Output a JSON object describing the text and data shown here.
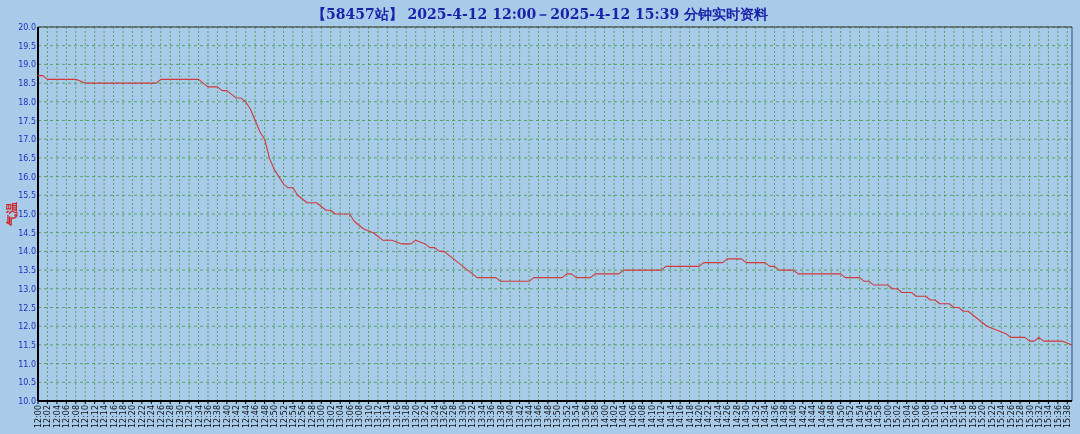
{
  "chart_data": {
    "type": "line",
    "title": "【58457站】 2025-4-12 12:00－2025-4-12 15:39 分钟实时资料",
    "ylabel": "气温",
    "x": [
      12.0,
      12.0167,
      12.0333,
      12.1333,
      12.1667,
      12.4167,
      12.4333,
      12.5667,
      12.5833,
      12.6,
      12.6333,
      12.65,
      12.6667,
      12.7,
      12.7167,
      12.7333,
      12.75,
      12.7667,
      12.7833,
      12.8,
      12.8167,
      12.8333,
      12.85,
      12.8667,
      12.8833,
      12.9,
      12.9167,
      12.9333,
      12.95,
      12.9833,
      13.0,
      13.0167,
      13.0333,
      13.05,
      13.1,
      13.1167,
      13.15,
      13.1833,
      13.2167,
      13.25,
      13.2833,
      13.3167,
      13.3333,
      13.3667,
      13.3833,
      13.4,
      13.4167,
      13.4333,
      13.4667,
      13.5,
      13.5333,
      13.55,
      13.6167,
      13.6333,
      13.7333,
      13.75,
      13.85,
      13.8667,
      13.8833,
      13.9,
      13.95,
      13.9667,
      14.05,
      14.0667,
      14.2,
      14.2167,
      14.3333,
      14.35,
      14.4167,
      14.4333,
      14.4833,
      14.5,
      14.5667,
      14.5833,
      14.6,
      14.6167,
      14.6667,
      14.6833,
      14.8333,
      14.85,
      14.9,
      14.9167,
      14.9333,
      14.95,
      15.0,
      15.0167,
      15.0333,
      15.05,
      15.0833,
      15.1,
      15.1333,
      15.15,
      15.1667,
      15.1833,
      15.2167,
      15.2333,
      15.25,
      15.2667,
      15.2833,
      15.3,
      15.3167,
      15.3333,
      15.35,
      15.3833,
      15.4167,
      15.4333,
      15.4833,
      15.5,
      15.5167,
      15.5333,
      15.55,
      15.6167,
      15.65
    ],
    "series": [
      {
        "color": "#d03a3a",
        "values": [
          18.7,
          18.7,
          18.6,
          18.6,
          18.5,
          18.5,
          18.6,
          18.6,
          18.5,
          18.4,
          18.4,
          18.3,
          18.3,
          18.1,
          18.1,
          18.0,
          17.8,
          17.5,
          17.2,
          17.0,
          16.5,
          16.2,
          16.0,
          15.8,
          15.7,
          15.7,
          15.5,
          15.4,
          15.3,
          15.3,
          15.2,
          15.1,
          15.1,
          15.0,
          15.0,
          14.8,
          14.6,
          14.5,
          14.3,
          14.3,
          14.2,
          14.2,
          14.3,
          14.2,
          14.1,
          14.1,
          14.0,
          14.0,
          13.8,
          13.6,
          13.4,
          13.3,
          13.3,
          13.2,
          13.2,
          13.3,
          13.3,
          13.4,
          13.4,
          13.3,
          13.3,
          13.4,
          13.4,
          13.5,
          13.5,
          13.6,
          13.6,
          13.7,
          13.7,
          13.8,
          13.8,
          13.7,
          13.7,
          13.6,
          13.6,
          13.5,
          13.5,
          13.4,
          13.4,
          13.3,
          13.3,
          13.2,
          13.2,
          13.1,
          13.1,
          13.0,
          13.0,
          12.9,
          12.9,
          12.8,
          12.8,
          12.7,
          12.7,
          12.6,
          12.6,
          12.5,
          12.5,
          12.4,
          12.4,
          12.3,
          12.2,
          12.1,
          12.0,
          11.9,
          11.8,
          11.7,
          11.7,
          11.6,
          11.6,
          11.7,
          11.6,
          11.6,
          11.5
        ]
      }
    ],
    "xlim": [
      12.0,
      15.65
    ],
    "ylim": [
      10,
      20
    ],
    "yticks": [
      {
        "value": 10,
        "label": "10.0"
      },
      {
        "value": 10.5,
        "label": "10.5"
      },
      {
        "value": 11,
        "label": "11.0"
      },
      {
        "value": 11.5,
        "label": "11.5"
      },
      {
        "value": 12,
        "label": "12.0"
      },
      {
        "value": 12.5,
        "label": "12.5"
      },
      {
        "value": 13,
        "label": "13.0"
      },
      {
        "value": 13.5,
        "label": "13.5"
      },
      {
        "value": 14,
        "label": "14.0"
      },
      {
        "value": 14.5,
        "label": "14.5"
      },
      {
        "value": 15,
        "label": "15.0"
      },
      {
        "value": 15.5,
        "label": "15.5"
      },
      {
        "value": 16,
        "label": "16.0"
      },
      {
        "value": 16.5,
        "label": "16.5"
      },
      {
        "value": 17,
        "label": "17.0"
      },
      {
        "value": 17.5,
        "label": "17.5"
      },
      {
        "value": 18,
        "label": "18.0"
      },
      {
        "value": 18.5,
        "label": "18.5"
      },
      {
        "value": 19,
        "label": "19.0"
      },
      {
        "value": 19.5,
        "label": "19.5"
      },
      {
        "value": 20,
        "label": "20.0"
      }
    ],
    "xticks": [
      {
        "value": 12.0,
        "label": "12:00"
      },
      {
        "value": 12.0333,
        "label": "12:02"
      },
      {
        "value": 12.0667,
        "label": "12:04"
      },
      {
        "value": 12.1,
        "label": "12:06"
      },
      {
        "value": 12.1333,
        "label": "12:08"
      },
      {
        "value": 12.1667,
        "label": "12:10"
      },
      {
        "value": 12.2,
        "label": "12:12"
      },
      {
        "value": 12.2333,
        "label": "12:14"
      },
      {
        "value": 12.2667,
        "label": "12:16"
      },
      {
        "value": 12.3,
        "label": "12:18"
      },
      {
        "value": 12.3333,
        "label": "12:20"
      },
      {
        "value": 12.3667,
        "label": "12:22"
      },
      {
        "value": 12.4,
        "label": "12:24"
      },
      {
        "value": 12.4333,
        "label": "12:26"
      },
      {
        "value": 12.4667,
        "label": "12:28"
      },
      {
        "value": 12.5,
        "label": "12:30"
      },
      {
        "value": 12.5333,
        "label": "12:32"
      },
      {
        "value": 12.5667,
        "label": "12:34"
      },
      {
        "value": 12.6,
        "label": "12:36"
      },
      {
        "value": 12.6333,
        "label": "12:38"
      },
      {
        "value": 12.6667,
        "label": "12:40"
      },
      {
        "value": 12.7,
        "label": "12:42"
      },
      {
        "value": 12.7333,
        "label": "12:44"
      },
      {
        "value": 12.7667,
        "label": "12:46"
      },
      {
        "value": 12.8,
        "label": "12:48"
      },
      {
        "value": 12.8333,
        "label": "12:50"
      },
      {
        "value": 12.8667,
        "label": "12:52"
      },
      {
        "value": 12.9,
        "label": "12:54"
      },
      {
        "value": 12.9333,
        "label": "12:56"
      },
      {
        "value": 12.9667,
        "label": "12:58"
      },
      {
        "value": 13.0,
        "label": "13:00"
      },
      {
        "value": 13.0333,
        "label": "13:02"
      },
      {
        "value": 13.0667,
        "label": "13:04"
      },
      {
        "value": 13.1,
        "label": "13:06"
      },
      {
        "value": 13.1333,
        "label": "13:08"
      },
      {
        "value": 13.1667,
        "label": "13:10"
      },
      {
        "value": 13.2,
        "label": "13:12"
      },
      {
        "value": 13.2333,
        "label": "13:14"
      },
      {
        "value": 13.2667,
        "label": "13:16"
      },
      {
        "value": 13.3,
        "label": "13:18"
      },
      {
        "value": 13.3333,
        "label": "13:20"
      },
      {
        "value": 13.3667,
        "label": "13:22"
      },
      {
        "value": 13.4,
        "label": "13:24"
      },
      {
        "value": 13.4333,
        "label": "13:26"
      },
      {
        "value": 13.4667,
        "label": "13:28"
      },
      {
        "value": 13.5,
        "label": "13:30"
      },
      {
        "value": 13.5333,
        "label": "13:32"
      },
      {
        "value": 13.5667,
        "label": "13:34"
      },
      {
        "value": 13.6,
        "label": "13:36"
      },
      {
        "value": 13.6333,
        "label": "13:38"
      },
      {
        "value": 13.6667,
        "label": "13:40"
      },
      {
        "value": 13.7,
        "label": "13:42"
      },
      {
        "value": 13.7333,
        "label": "13:44"
      },
      {
        "value": 13.7667,
        "label": "13:46"
      },
      {
        "value": 13.8,
        "label": "13:48"
      },
      {
        "value": 13.8333,
        "label": "13:50"
      },
      {
        "value": 13.8667,
        "label": "13:52"
      },
      {
        "value": 13.9,
        "label": "13:54"
      },
      {
        "value": 13.9333,
        "label": "13:56"
      },
      {
        "value": 13.9667,
        "label": "13:58"
      },
      {
        "value": 14.0,
        "label": "14:00"
      },
      {
        "value": 14.0333,
        "label": "14:02"
      },
      {
        "value": 14.0667,
        "label": "14:04"
      },
      {
        "value": 14.1,
        "label": "14:06"
      },
      {
        "value": 14.1333,
        "label": "14:08"
      },
      {
        "value": 14.1667,
        "label": "14:10"
      },
      {
        "value": 14.2,
        "label": "14:12"
      },
      {
        "value": 14.2333,
        "label": "14:14"
      },
      {
        "value": 14.2667,
        "label": "14:16"
      },
      {
        "value": 14.3,
        "label": "14:18"
      },
      {
        "value": 14.3333,
        "label": "14:20"
      },
      {
        "value": 14.3667,
        "label": "14:22"
      },
      {
        "value": 14.4,
        "label": "14:24"
      },
      {
        "value": 14.4333,
        "label": "14:26"
      },
      {
        "value": 14.4667,
        "label": "14:28"
      },
      {
        "value": 14.5,
        "label": "14:30"
      },
      {
        "value": 14.5333,
        "label": "14:32"
      },
      {
        "value": 14.5667,
        "label": "14:34"
      },
      {
        "value": 14.6,
        "label": "14:36"
      },
      {
        "value": 14.6333,
        "label": "14:38"
      },
      {
        "value": 14.6667,
        "label": "14:40"
      },
      {
        "value": 14.7,
        "label": "14:42"
      },
      {
        "value": 14.7333,
        "label": "14:44"
      },
      {
        "value": 14.7667,
        "label": "14:46"
      },
      {
        "value": 14.8,
        "label": "14:48"
      },
      {
        "value": 14.8333,
        "label": "14:50"
      },
      {
        "value": 14.8667,
        "label": "14:52"
      },
      {
        "value": 14.9,
        "label": "14:54"
      },
      {
        "value": 14.9333,
        "label": "14:56"
      },
      {
        "value": 14.9667,
        "label": "14:58"
      },
      {
        "value": 15.0,
        "label": "15:00"
      },
      {
        "value": 15.0333,
        "label": "15:02"
      },
      {
        "value": 15.0667,
        "label": "15:04"
      },
      {
        "value": 15.1,
        "label": "15:06"
      },
      {
        "value": 15.1333,
        "label": "15:08"
      },
      {
        "value": 15.1667,
        "label": "15:10"
      },
      {
        "value": 15.2,
        "label": "15:12"
      },
      {
        "value": 15.2333,
        "label": "15:14"
      },
      {
        "value": 15.2667,
        "label": "15:16"
      },
      {
        "value": 15.3,
        "label": "15:18"
      },
      {
        "value": 15.3333,
        "label": "15:20"
      },
      {
        "value": 15.3667,
        "label": "15:22"
      },
      {
        "value": 15.4,
        "label": "15:24"
      },
      {
        "value": 15.4333,
        "label": "15:26"
      },
      {
        "value": 15.4667,
        "label": "15:28"
      },
      {
        "value": 15.5,
        "label": "15:30"
      },
      {
        "value": 15.5333,
        "label": "15:32"
      },
      {
        "value": 15.5667,
        "label": "15:34"
      },
      {
        "value": 15.6,
        "label": "15:36"
      },
      {
        "value": 15.6333,
        "label": "15:38"
      }
    ],
    "grid": true
  }
}
